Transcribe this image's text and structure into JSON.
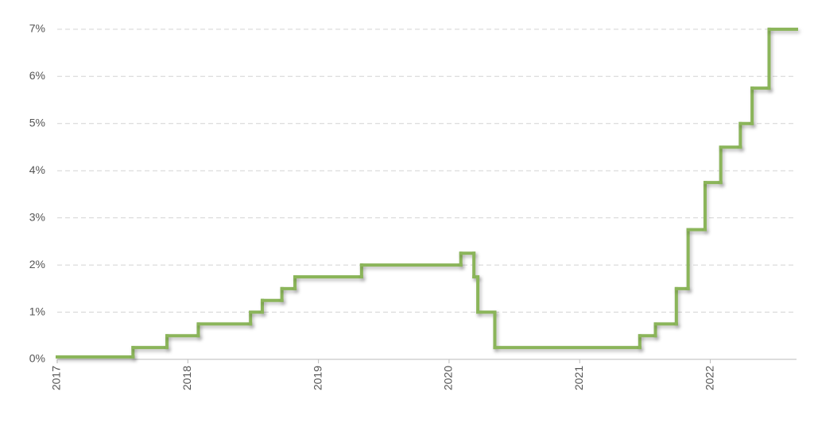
{
  "chart_data": {
    "type": "line",
    "step": true,
    "color": "#8bb55a",
    "grid": true,
    "x": [
      2017.0,
      2017.58,
      2017.84,
      2018.08,
      2018.48,
      2018.57,
      2018.72,
      2018.82,
      2019.33,
      2020.09,
      2020.19,
      2020.22,
      2020.35,
      2021.46,
      2021.58,
      2021.74,
      2021.83,
      2021.96,
      2022.08,
      2022.23,
      2022.32,
      2022.45
    ],
    "values": [
      0.05,
      0.25,
      0.5,
      0.75,
      1.0,
      1.25,
      1.5,
      1.75,
      2.0,
      2.25,
      1.75,
      1.0,
      0.25,
      0.5,
      0.75,
      1.5,
      2.75,
      3.75,
      4.5,
      5.0,
      5.75,
      7.0
    ],
    "xlim": [
      2017,
      2022.66
    ],
    "xticks": [
      2017,
      2018,
      2019,
      2020,
      2021,
      2022
    ],
    "ylim": [
      0,
      7.25
    ],
    "yticks": [
      {
        "value": 0,
        "label": "0%"
      },
      {
        "value": 1,
        "label": "1%"
      },
      {
        "value": 2,
        "label": "2%"
      },
      {
        "value": 3,
        "label": "3%"
      },
      {
        "value": 4,
        "label": "4%"
      },
      {
        "value": 5,
        "label": "5%"
      },
      {
        "value": 6,
        "label": "6%"
      },
      {
        "value": 7,
        "label": "7%"
      }
    ]
  }
}
